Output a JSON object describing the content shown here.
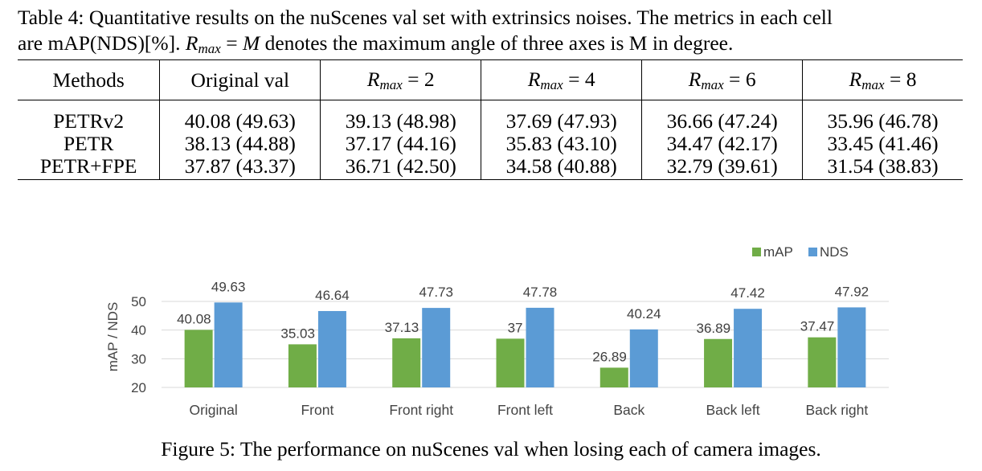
{
  "table": {
    "caption_line1": "Table 4: Quantitative results on the nuScenes val set with extrinsics noises. The metrics in each cell",
    "caption_line2_a": "are mAP(NDS)[%]. ",
    "caption_rmax_var": "R",
    "caption_rmax_sub": "max",
    "caption_eq": " = ",
    "caption_M": "M",
    "caption_line2_b": " denotes the maximum angle of three axes is M in degree.",
    "headers": {
      "methods": "Methods",
      "original": "Original val",
      "rmax_var": "R",
      "rmax_sub": "max",
      "eq": " = ",
      "r2": "2",
      "r4": "4",
      "r6": "6",
      "r8": "8"
    },
    "rows": [
      {
        "method": "PETRv2",
        "cells": [
          "40.08 (49.63)",
          "39.13 (48.98)",
          "37.69 (47.93)",
          "36.66 (47.24)",
          "35.96 (46.78)"
        ]
      },
      {
        "method": "PETR",
        "cells": [
          "38.13 (44.88)",
          "37.17 (44.16)",
          "35.83 (43.10)",
          "34.47 (42.17)",
          "33.45 (41.46)"
        ]
      },
      {
        "method": "PETR+FPE",
        "cells": [
          "37.87 (43.37)",
          "36.71 (42.50)",
          "34.58 (40.88)",
          "32.79 (39.61)",
          "31.54 (38.83)"
        ]
      }
    ]
  },
  "chart_data": {
    "type": "bar",
    "categories": [
      "Original",
      "Front",
      "Front right",
      "Front left",
      "Back",
      "Back left",
      "Back right"
    ],
    "series": [
      {
        "name": "mAP",
        "values": [
          40.08,
          35.03,
          37.13,
          37,
          26.89,
          36.89,
          37.47
        ],
        "labels": [
          "40.08",
          "35.03",
          "37.13",
          "37",
          "26.89",
          "36.89",
          "37.47"
        ],
        "color": "#70ad47"
      },
      {
        "name": "NDS",
        "values": [
          49.63,
          46.64,
          47.73,
          47.78,
          40.24,
          47.42,
          47.92
        ],
        "labels": [
          "49.63",
          "46.64",
          "47.73",
          "47.78",
          "40.24",
          "47.42",
          "47.92"
        ],
        "color": "#5b9bd5"
      }
    ],
    "ylabel": "mAP / NDS",
    "xlabel": "",
    "ylim": [
      20,
      50
    ],
    "yticks": [
      "20",
      "30",
      "40",
      "50"
    ],
    "grid": true,
    "legend": "top-right"
  },
  "figure": {
    "caption": "Figure 5: The performance on nuScenes val when losing each of camera images."
  }
}
